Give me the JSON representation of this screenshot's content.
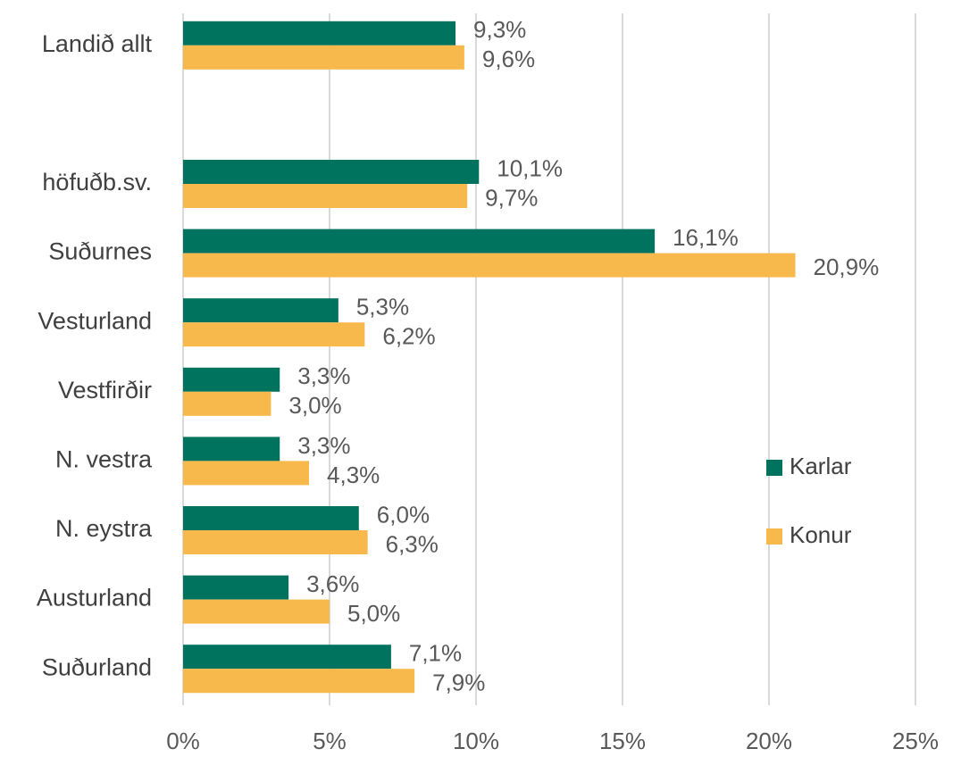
{
  "chart_data": {
    "type": "bar",
    "orientation": "horizontal",
    "categories": [
      "Landið allt",
      null,
      "höfuðb.sv.",
      "Suðurnes",
      "Vesturland",
      "Vestfirðir",
      "N. vestra",
      "N. eystra",
      "Austurland",
      "Suðurland"
    ],
    "series": [
      {
        "name": "Karlar",
        "color": "#00735f",
        "values": [
          9.3,
          null,
          10.1,
          16.1,
          5.3,
          3.3,
          3.3,
          6.0,
          3.6,
          7.1
        ],
        "value_labels": [
          "9,3%",
          null,
          "10,1%",
          "16,1%",
          "5,3%",
          "3,3%",
          "3,3%",
          "6,0%",
          "3,6%",
          "7,1%"
        ]
      },
      {
        "name": "Konur",
        "color": "#f8b94c",
        "values": [
          9.6,
          null,
          9.7,
          20.9,
          6.2,
          3.0,
          4.3,
          6.3,
          5.0,
          7.9
        ],
        "value_labels": [
          "9,6%",
          null,
          "9,7%",
          "20,9%",
          "6,2%",
          "3,0%",
          "4,3%",
          "6,3%",
          "5,0%",
          "7,9%"
        ]
      }
    ],
    "xlim": [
      0,
      25
    ],
    "xticks": [
      {
        "value": 0,
        "label": "0%"
      },
      {
        "value": 5,
        "label": "5%"
      },
      {
        "value": 10,
        "label": "10%"
      },
      {
        "value": 15,
        "label": "15%"
      },
      {
        "value": 20,
        "label": "20%"
      },
      {
        "value": 25,
        "label": "25%"
      }
    ],
    "grid": true,
    "legend": "right"
  }
}
